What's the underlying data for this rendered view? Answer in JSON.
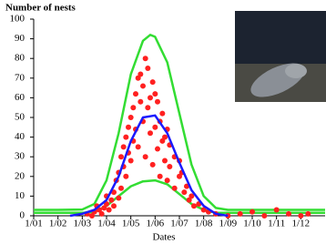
{
  "chart_data": {
    "type": "scatter",
    "title": "Number of nests",
    "x_label": "Dates",
    "xlim": [
      0,
      12
    ],
    "ylim": [
      0,
      100
    ],
    "xticks": [
      {
        "value": 0,
        "label": "1/01"
      },
      {
        "value": 1,
        "label": "1/02"
      },
      {
        "value": 2,
        "label": "1/03"
      },
      {
        "value": 3,
        "label": "1/04"
      },
      {
        "value": 4,
        "label": "1/05"
      },
      {
        "value": 5,
        "label": "1/06"
      },
      {
        "value": 6,
        "label": "1/07"
      },
      {
        "value": 7,
        "label": "1/08"
      },
      {
        "value": 8,
        "label": "1/09"
      },
      {
        "value": 9,
        "label": "1/10"
      },
      {
        "value": 10,
        "label": "1/11"
      },
      {
        "value": 11,
        "label": "1/12"
      }
    ],
    "yticks": [
      0,
      10,
      20,
      30,
      40,
      50,
      60,
      70,
      80,
      90,
      100
    ],
    "series": [
      {
        "type": "line",
        "color": "#33dd33",
        "x": [
          0,
          1,
          2,
          2.5,
          3,
          3.5,
          4,
          4.5,
          4.8,
          5,
          5.5,
          6,
          6.5,
          7,
          7.5,
          8,
          12
        ],
        "values": [
          3,
          3,
          3.2,
          6,
          18,
          42,
          72,
          89,
          92,
          91,
          78,
          52,
          26,
          10,
          4,
          3,
          3
        ]
      },
      {
        "type": "line",
        "color": "#33dd33",
        "x": [
          0,
          2,
          2.5,
          3,
          3.5,
          4,
          4.5,
          5,
          5.5,
          6,
          6.5,
          7,
          7.5,
          12
        ],
        "values": [
          1.5,
          1.5,
          2,
          5,
          10,
          15,
          17.5,
          18,
          16,
          11,
          6,
          3,
          1.5,
          1.5
        ]
      },
      {
        "type": "scatter",
        "color": "#ff2020",
        "x": [
          2.2,
          2.4,
          2.5,
          2.6,
          2.7,
          2.8,
          2.9,
          3.0,
          3.0,
          3.1,
          3.2,
          3.3,
          3.3,
          3.4,
          3.5,
          3.5,
          3.6,
          3.6,
          3.7,
          3.7,
          3.8,
          3.8,
          3.9,
          3.9,
          4.0,
          4.0,
          4.1,
          4.1,
          4.2,
          4.2,
          4.3,
          4.3,
          4.4,
          4.4,
          4.5,
          4.5,
          4.6,
          4.6,
          4.7,
          4.7,
          4.8,
          4.8,
          4.9,
          4.9,
          5.0,
          5.0,
          5.1,
          5.1,
          5.2,
          5.2,
          5.3,
          5.3,
          5.4,
          5.4,
          5.5,
          5.5,
          5.6,
          5.6,
          5.8,
          5.8,
          6.0,
          6.0,
          6.1,
          6.2,
          6.3,
          6.4,
          6.5,
          6.6,
          6.8,
          7.0,
          7.2,
          7.5,
          8.0,
          8.5,
          9.0,
          9.5,
          10.0,
          10.5,
          11.0,
          11.3
        ],
        "values": [
          1,
          0,
          2,
          5,
          3,
          1,
          4,
          6,
          10,
          3,
          8,
          12,
          5,
          18,
          22,
          9,
          30,
          14,
          35,
          25,
          40,
          20,
          45,
          32,
          50,
          28,
          55,
          38,
          62,
          44,
          70,
          35,
          72,
          58,
          66,
          48,
          80,
          30,
          75,
          55,
          60,
          42,
          68,
          26,
          62,
          45,
          58,
          34,
          48,
          20,
          52,
          38,
          40,
          28,
          44,
          18,
          36,
          25,
          30,
          14,
          28,
          20,
          22,
          12,
          15,
          8,
          10,
          5,
          6,
          3,
          2,
          1,
          0,
          1,
          2,
          0,
          3,
          1,
          0,
          1
        ]
      },
      {
        "type": "line",
        "color": "#1a1aff",
        "x": [
          1.5,
          2,
          2.5,
          3,
          3.5,
          4,
          4.5,
          5,
          5.5,
          6,
          6.5,
          7,
          7.5,
          8
        ],
        "values": [
          0,
          1,
          3,
          8,
          20,
          38,
          50,
          51,
          42,
          27,
          13,
          5,
          1,
          0
        ]
      }
    ]
  }
}
